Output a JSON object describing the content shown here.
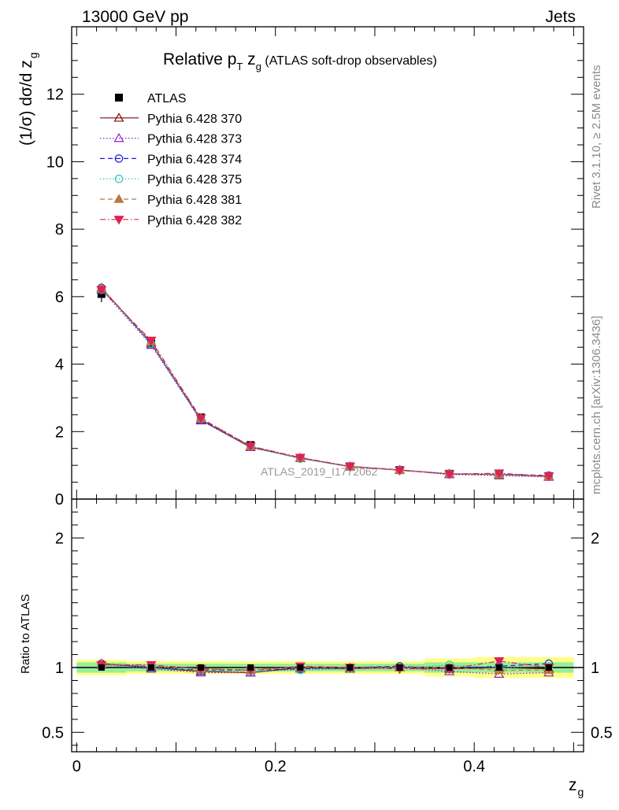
{
  "header": {
    "left": "13000 GeV pp",
    "right": "Jets"
  },
  "side": {
    "rivet": "Rivet 3.1.10, ≥ 2.5M events",
    "mcplots": "mcplots.cern.ch [arXiv:1306.3436]"
  },
  "title": {
    "main": "Relative p",
    "main_sub": "T",
    "var": " z",
    "var_sub": "g",
    "suffix": " (ATLAS soft-drop observables)"
  },
  "watermark": "ATLAS_2019_I1772062",
  "labels": {
    "ylabel_main": "(1/σ) dσ/d z",
    "ylabel_main_sub": "g",
    "ylabel_ratio": "Ratio to ATLAS",
    "xlabel": "z",
    "xlabel_sub": "g"
  },
  "chart_data": {
    "type": "line",
    "x": [
      0.025,
      0.075,
      0.125,
      0.175,
      0.225,
      0.275,
      0.325,
      0.375,
      0.425,
      0.475
    ],
    "xlim": [
      -0.005,
      0.51
    ],
    "ylim_main": [
      0,
      14
    ],
    "ylim_ratio": [
      0.35,
      2.3
    ],
    "xticks": [
      0,
      0.2,
      0.4
    ],
    "xtick_labels": [
      "0",
      "0.2",
      "0.4"
    ],
    "yticks_main": [
      0,
      2,
      4,
      6,
      8,
      10,
      12
    ],
    "ytick_labels_main": [
      "0",
      "2",
      "4",
      "6",
      "8",
      "10",
      "12"
    ],
    "yticks_ratio": [
      0.5,
      1,
      2
    ],
    "ytick_labels_ratio": [
      "0.5",
      "1",
      "2"
    ],
    "data": {
      "name": "ATLAS",
      "values": [
        6.08,
        4.61,
        2.42,
        1.6,
        1.22,
        0.97,
        0.86,
        0.75,
        0.73,
        0.68
      ],
      "band_inner": [
        0.04,
        0.03,
        0.03,
        0.03,
        0.03,
        0.03,
        0.03,
        0.04,
        0.04,
        0.04
      ],
      "band_outer": [
        0.06,
        0.05,
        0.05,
        0.05,
        0.05,
        0.05,
        0.05,
        0.07,
        0.08,
        0.08
      ]
    },
    "series": [
      {
        "name": "Pythia 6.428 370",
        "color": "#7a0c0c",
        "dash": "",
        "marker": "triangle-open",
        "ratio": [
          1.03,
          1.0,
          0.97,
          0.96,
          1.0,
          0.99,
          1.0,
          0.99,
          1.0,
          0.99
        ]
      },
      {
        "name": "Pythia 6.428 373",
        "color": "#8b22cc",
        "dash": "1.5,2.5",
        "marker": "triangle-open",
        "ratio": [
          1.02,
          0.99,
          0.96,
          0.96,
          0.99,
          0.99,
          1.0,
          0.97,
          0.95,
          0.96
        ]
      },
      {
        "name": "Pythia 6.428 374",
        "color": "#1a1add",
        "dash": "6,4",
        "marker": "circle-open",
        "ratio": [
          1.03,
          1.0,
          0.98,
          0.98,
          0.99,
          1.0,
          1.01,
          0.99,
          1.01,
          1.03
        ]
      },
      {
        "name": "Pythia 6.428 375",
        "color": "#22c2b0",
        "dash": "1.5,2.5",
        "marker": "circle-open",
        "ratio": [
          1.02,
          1.0,
          0.98,
          0.97,
          0.98,
          0.99,
          1.0,
          1.02,
          1.0,
          1.01
        ]
      },
      {
        "name": "Pythia 6.428 381",
        "color": "#b87840",
        "dash": "6,4",
        "marker": "triangle-filled",
        "ratio": [
          1.03,
          1.01,
          0.99,
          0.98,
          1.0,
          1.0,
          1.0,
          1.0,
          0.98,
          0.98
        ]
      },
      {
        "name": "Pythia 6.428 382",
        "color": "#dd2255",
        "dash": "7,3,1.5,3",
        "marker": "triangle-down-filled",
        "ratio": [
          1.02,
          1.02,
          0.99,
          0.98,
          1.01,
          1.0,
          0.99,
          0.99,
          1.05,
          1.0
        ]
      }
    ]
  }
}
